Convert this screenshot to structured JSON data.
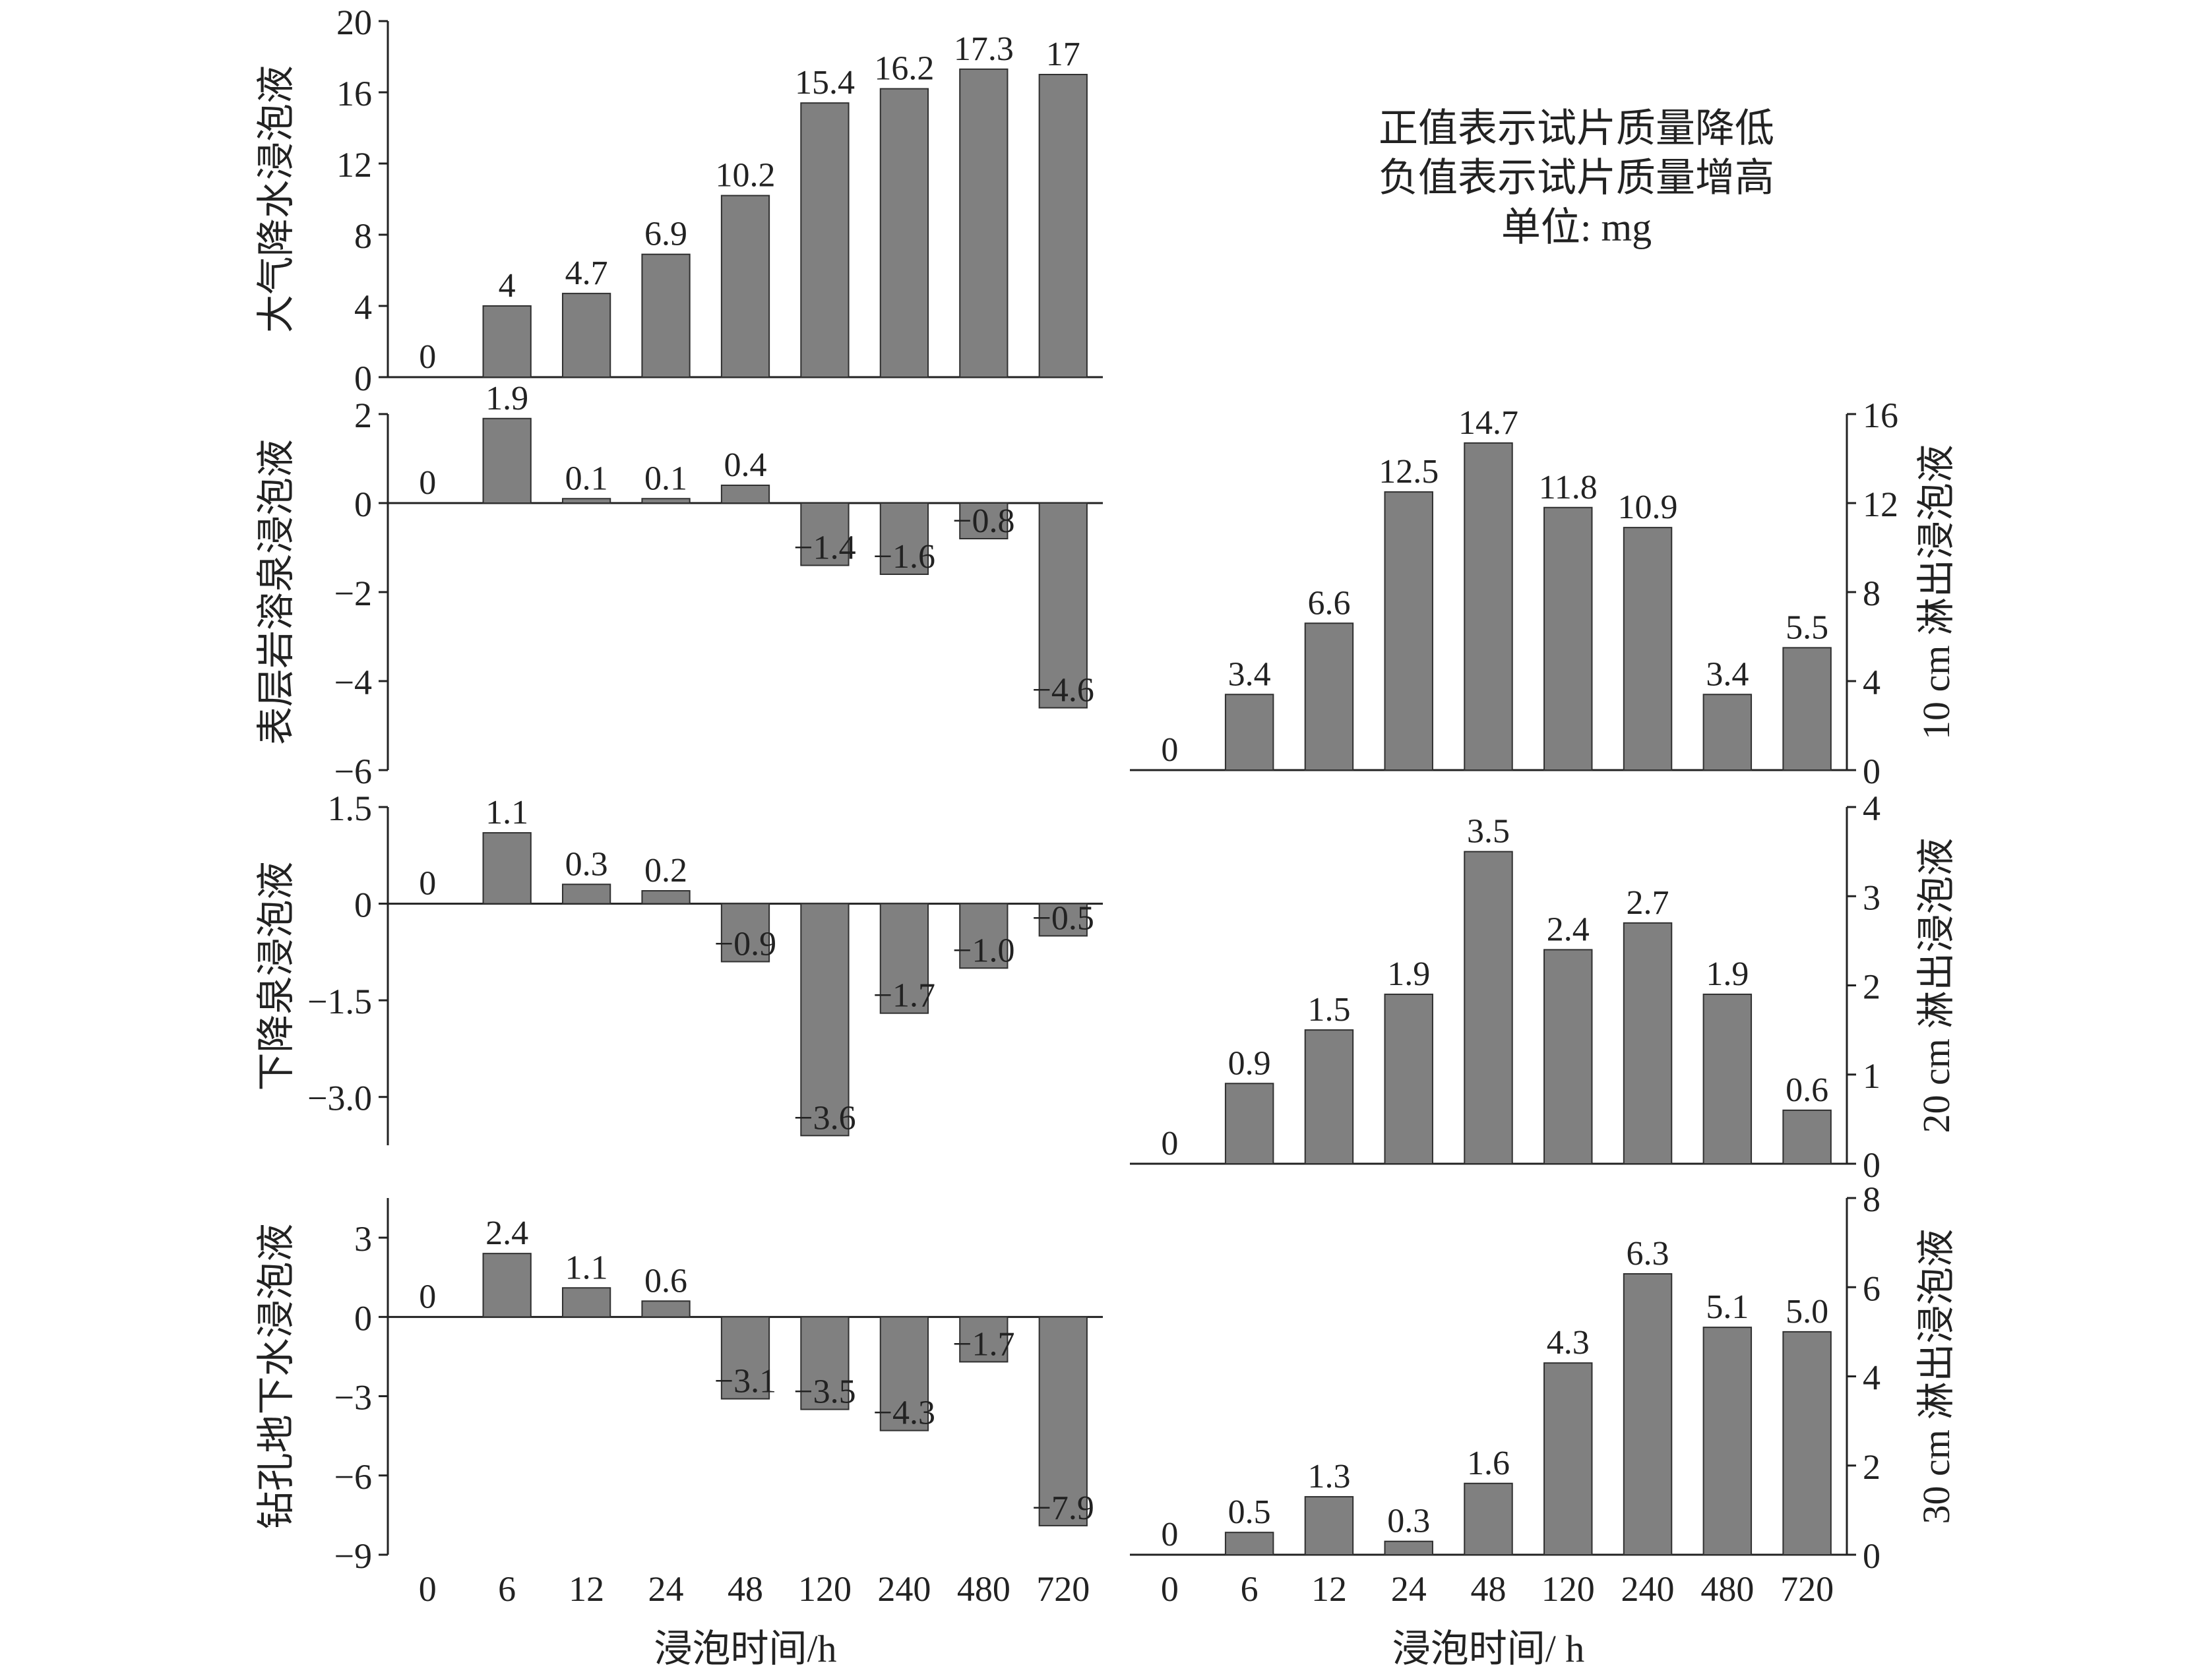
{
  "note": {
    "lines": [
      "正值表示试片质量降低",
      "负值表示试片质量增高",
      "单位: mg"
    ]
  },
  "colors": {
    "bar": "#808080",
    "bar_stroke": "#303030",
    "axis": "#222222"
  },
  "chart_data": [
    {
      "type": "bar",
      "ylabel": "大气降水浸泡液",
      "categories": [
        "0",
        "6",
        "12",
        "24",
        "48",
        "120",
        "240",
        "480",
        "720"
      ],
      "values": [
        0,
        4,
        4.7,
        6.9,
        10.2,
        15.4,
        16.2,
        17.3,
        17
      ],
      "value_labels": [
        "0",
        "4",
        "4.7",
        "6.9",
        "10.2",
        "15.4",
        "16.2",
        "17.3",
        "17"
      ],
      "ylim": [
        0,
        20
      ],
      "yticks": [
        0,
        4,
        8,
        12,
        16,
        20
      ],
      "ytick_labels": [
        "0",
        "4",
        "8",
        "12",
        "16",
        "20"
      ],
      "yaxis_side": "left"
    },
    {
      "type": "bar",
      "ylabel": "表层岩溶泉浸泡液",
      "categories": [
        "0",
        "6",
        "12",
        "24",
        "48",
        "120",
        "240",
        "480",
        "720"
      ],
      "values": [
        0,
        1.9,
        0.1,
        0.1,
        0.4,
        -1.4,
        -1.6,
        -0.8,
        -4.6
      ],
      "value_labels": [
        "0",
        "1.9",
        "0.1",
        "0.1",
        "0.4",
        "−1.4",
        "−1.6",
        "−0.8",
        "−4.6"
      ],
      "ylim": [
        -6,
        2
      ],
      "yticks": [
        -6,
        -4,
        -2,
        0,
        2
      ],
      "ytick_labels": [
        "−6",
        "−4",
        "−2",
        "0",
        "2"
      ],
      "yaxis_side": "left"
    },
    {
      "type": "bar",
      "ylabel": "下降泉浸泡液",
      "categories": [
        "0",
        "6",
        "12",
        "24",
        "48",
        "120",
        "240",
        "480",
        "720"
      ],
      "values": [
        0,
        1.1,
        0.3,
        0.2,
        -0.9,
        -3.6,
        -1.7,
        -1.0,
        -0.5
      ],
      "value_labels": [
        "0",
        "1.1",
        "0.3",
        "0.2",
        "−0.9",
        "−3.6",
        "−1.7",
        "−1.0",
        "−0.5"
      ],
      "ylim": [
        -3.75,
        1.5
      ],
      "yticks": [
        -3.0,
        -1.5,
        0,
        1.5
      ],
      "ytick_labels": [
        "−3.0",
        "−1.5",
        "0",
        "1.5"
      ],
      "yaxis_side": "left"
    },
    {
      "type": "bar",
      "ylabel": "钻孔地下水浸泡液",
      "categories": [
        "0",
        "6",
        "12",
        "24",
        "48",
        "120",
        "240",
        "480",
        "720"
      ],
      "values": [
        0,
        2.4,
        1.1,
        0.6,
        -3.1,
        -3.5,
        -4.3,
        -1.7,
        -7.9
      ],
      "value_labels": [
        "0",
        "2.4",
        "1.1",
        "0.6",
        "−3.1",
        "−3.5",
        "−4.3",
        "−1.7",
        "−7.9"
      ],
      "ylim": [
        -9,
        4.5
      ],
      "yticks": [
        -9,
        -6,
        -3,
        0,
        3
      ],
      "ytick_labels": [
        "−9",
        "−6",
        "−3",
        "0",
        "3"
      ],
      "yaxis_side": "left",
      "xlabel": "浸泡时间/h"
    },
    {
      "type": "bar",
      "ylabel": "10 cm 淋出浸泡液",
      "categories": [
        "0",
        "6",
        "12",
        "24",
        "48",
        "120",
        "240",
        "480",
        "720"
      ],
      "values": [
        0,
        3.4,
        6.6,
        12.5,
        14.7,
        11.8,
        10.9,
        3.4,
        5.5
      ],
      "value_labels": [
        "0",
        "3.4",
        "6.6",
        "12.5",
        "14.7",
        "11.8",
        "10.9",
        "3.4",
        "5.5"
      ],
      "ylim": [
        0,
        16
      ],
      "yticks": [
        0,
        4,
        8,
        12,
        16
      ],
      "ytick_labels": [
        "0",
        "4",
        "8",
        "12",
        "16"
      ],
      "yaxis_side": "right"
    },
    {
      "type": "bar",
      "ylabel": "20 cm 淋出浸泡液",
      "categories": [
        "0",
        "6",
        "12",
        "24",
        "48",
        "120",
        "240",
        "480",
        "720"
      ],
      "values": [
        0,
        0.9,
        1.5,
        1.9,
        3.5,
        2.4,
        2.7,
        1.9,
        0.6
      ],
      "value_labels": [
        "0",
        "0.9",
        "1.5",
        "1.9",
        "3.5",
        "2.4",
        "2.7",
        "1.9",
        "0.6"
      ],
      "ylim": [
        0,
        4
      ],
      "yticks": [
        0,
        1,
        2,
        3,
        4
      ],
      "ytick_labels": [
        "0",
        "1",
        "2",
        "3",
        "4"
      ],
      "yaxis_side": "right"
    },
    {
      "type": "bar",
      "ylabel": "30 cm 淋出浸泡液",
      "categories": [
        "0",
        "6",
        "12",
        "24",
        "48",
        "120",
        "240",
        "480",
        "720"
      ],
      "values": [
        0,
        0.5,
        1.3,
        0.3,
        1.6,
        4.3,
        6.3,
        5.1,
        5.0
      ],
      "value_labels": [
        "0",
        "0.5",
        "1.3",
        "0.3",
        "1.6",
        "4.3",
        "6.3",
        "5.1",
        "5.0"
      ],
      "ylim": [
        0,
        8
      ],
      "yticks": [
        0,
        2,
        4,
        6,
        8
      ],
      "ytick_labels": [
        "0",
        "2",
        "4",
        "6",
        "8"
      ],
      "yaxis_side": "right",
      "xlabel": "浸泡时间/ h"
    }
  ]
}
